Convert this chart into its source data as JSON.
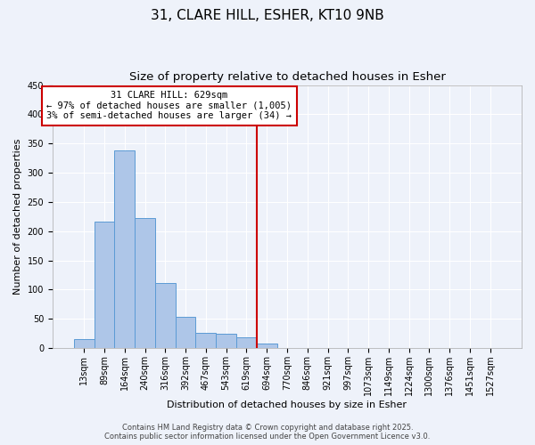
{
  "title": "31, CLARE HILL, ESHER, KT10 9NB",
  "subtitle": "Size of property relative to detached houses in Esher",
  "xlabel": "Distribution of detached houses by size in Esher",
  "ylabel": "Number of detached properties",
  "bar_labels": [
    "13sqm",
    "89sqm",
    "164sqm",
    "240sqm",
    "316sqm",
    "392sqm",
    "467sqm",
    "543sqm",
    "619sqm",
    "694sqm",
    "770sqm",
    "846sqm",
    "921sqm",
    "997sqm",
    "1073sqm",
    "1149sqm",
    "1224sqm",
    "1300sqm",
    "1376sqm",
    "1451sqm",
    "1527sqm"
  ],
  "bar_values": [
    15,
    217,
    338,
    222,
    112,
    54,
    26,
    24,
    19,
    8,
    1,
    0,
    0,
    0,
    0,
    0,
    0,
    0,
    0,
    0,
    0
  ],
  "bar_color": "#aec6e8",
  "bar_edge_color": "#5b9bd5",
  "vline_x": 8.5,
  "vline_color": "#cc0000",
  "annotation_text": "31 CLARE HILL: 629sqm\n← 97% of detached houses are smaller (1,005)\n3% of semi-detached houses are larger (34) →",
  "annotation_box_color": "#cc0000",
  "ylim": [
    0,
    450
  ],
  "yticks": [
    0,
    50,
    100,
    150,
    200,
    250,
    300,
    350,
    400,
    450
  ],
  "background_color": "#eef2fa",
  "grid_color": "#ffffff",
  "footer_text": "Contains HM Land Registry data © Crown copyright and database right 2025.\nContains public sector information licensed under the Open Government Licence v3.0.",
  "title_fontsize": 11,
  "subtitle_fontsize": 9.5,
  "axis_label_fontsize": 8,
  "tick_fontsize": 7,
  "annotation_fontsize": 7.5,
  "footer_fontsize": 6
}
